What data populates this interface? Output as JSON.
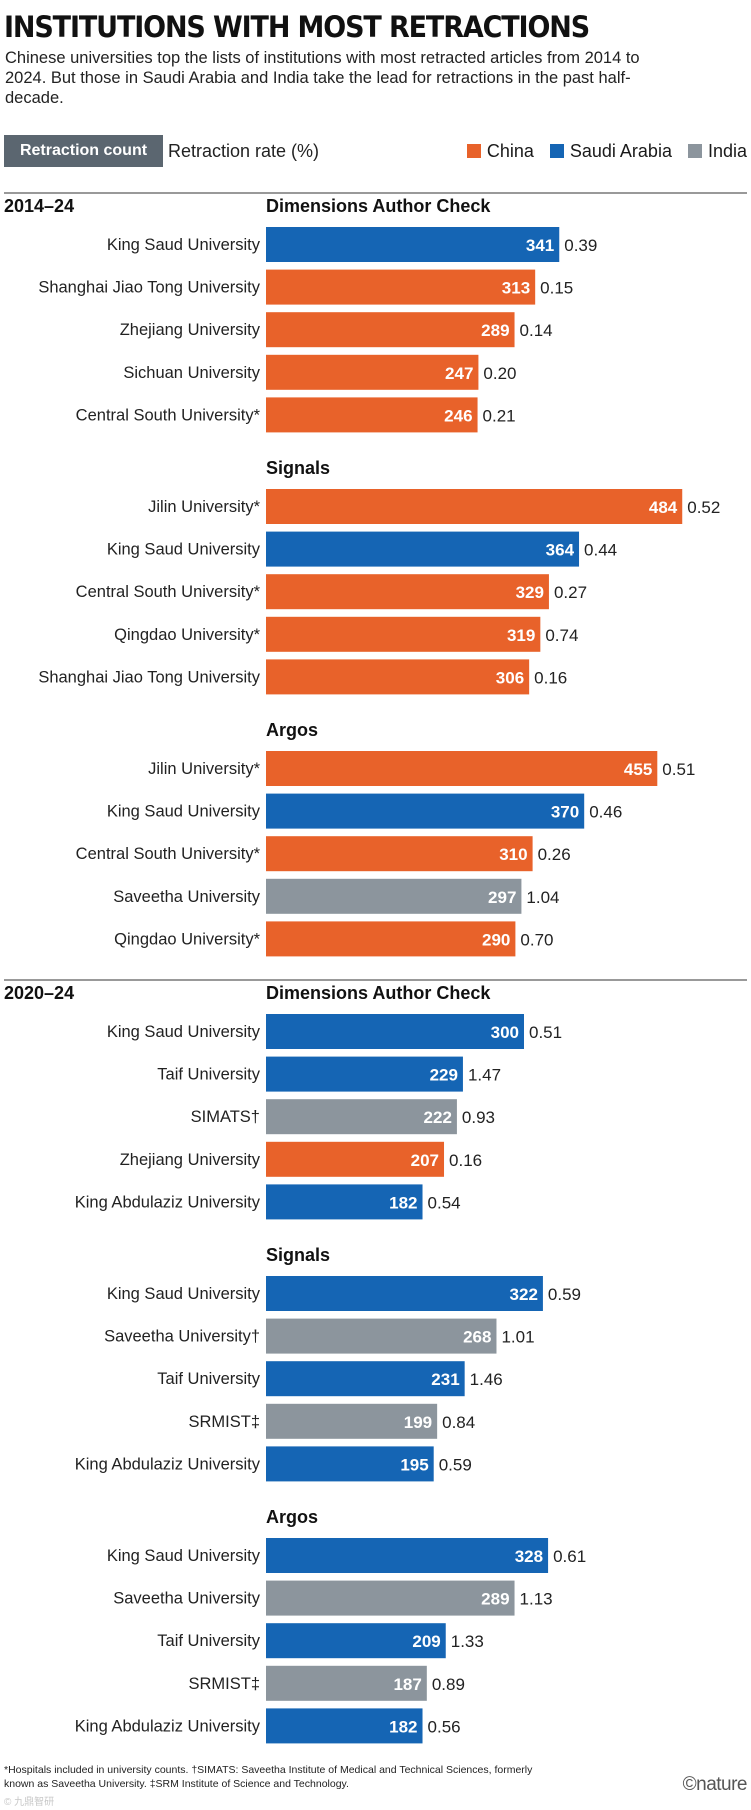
{
  "header": {
    "title": "INSTITUTIONS WITH MOST RETRACTIONS",
    "subtitle": "Chinese universities top the lists of institutions with most retracted articles from 2014 to 2024. But those in Saudi Arabia and India take the lead for retractions in the past half-decade."
  },
  "controls": {
    "count_label": "Retraction count",
    "rate_label": "Retraction rate (%)"
  },
  "legend": [
    {
      "label": "China",
      "color": "#e8622a"
    },
    {
      "label": "Saudi Arabia",
      "color": "#1565b4"
    },
    {
      "label": "India",
      "color": "#8c959d"
    }
  ],
  "chart_data": {
    "type": "bar",
    "orientation": "horizontal",
    "title": "INSTITUTIONS WITH MOST RETRACTIONS",
    "xlim": [
      0,
      500
    ],
    "periods": [
      {
        "label": "2014–24",
        "groups": [
          {
            "source": "Dimensions Author Check",
            "bars": [
              {
                "institution": "King Saud University",
                "country": "Saudi Arabia",
                "count": 341,
                "rate": "0.39"
              },
              {
                "institution": "Shanghai Jiao Tong University",
                "country": "China",
                "count": 313,
                "rate": "0.15"
              },
              {
                "institution": "Zhejiang University",
                "country": "China",
                "count": 289,
                "rate": "0.14"
              },
              {
                "institution": "Sichuan University",
                "country": "China",
                "count": 247,
                "rate": "0.20"
              },
              {
                "institution": "Central South University*",
                "country": "China",
                "count": 246,
                "rate": "0.21"
              }
            ]
          },
          {
            "source": "Signals",
            "bars": [
              {
                "institution": "Jilin University*",
                "country": "China",
                "count": 484,
                "rate": "0.52"
              },
              {
                "institution": "King Saud University",
                "country": "Saudi Arabia",
                "count": 364,
                "rate": "0.44"
              },
              {
                "institution": "Central South University*",
                "country": "China",
                "count": 329,
                "rate": "0.27"
              },
              {
                "institution": "Qingdao University*",
                "country": "China",
                "count": 319,
                "rate": "0.74"
              },
              {
                "institution": "Shanghai Jiao Tong University",
                "country": "China",
                "count": 306,
                "rate": "0.16"
              }
            ]
          },
          {
            "source": "Argos",
            "bars": [
              {
                "institution": "Jilin University*",
                "country": "China",
                "count": 455,
                "rate": "0.51"
              },
              {
                "institution": "King Saud University",
                "country": "Saudi Arabia",
                "count": 370,
                "rate": "0.46"
              },
              {
                "institution": "Central South University*",
                "country": "China",
                "count": 310,
                "rate": "0.26"
              },
              {
                "institution": "Saveetha University",
                "country": "India",
                "count": 297,
                "rate": "1.04"
              },
              {
                "institution": "Qingdao University*",
                "country": "China",
                "count": 290,
                "rate": "0.70"
              }
            ]
          }
        ]
      },
      {
        "label": "2020–24",
        "groups": [
          {
            "source": "Dimensions Author Check",
            "bars": [
              {
                "institution": "King Saud University",
                "country": "Saudi Arabia",
                "count": 300,
                "rate": "0.51"
              },
              {
                "institution": "Taif University",
                "country": "Saudi Arabia",
                "count": 229,
                "rate": "1.47"
              },
              {
                "institution": "SIMATS†",
                "country": "India",
                "count": 222,
                "rate": "0.93"
              },
              {
                "institution": "Zhejiang University",
                "country": "China",
                "count": 207,
                "rate": "0.16"
              },
              {
                "institution": "King Abdulaziz University",
                "country": "Saudi Arabia",
                "count": 182,
                "rate": "0.54"
              }
            ]
          },
          {
            "source": "Signals",
            "bars": [
              {
                "institution": "King Saud University",
                "country": "Saudi Arabia",
                "count": 322,
                "rate": "0.59"
              },
              {
                "institution": "Saveetha University†",
                "country": "India",
                "count": 268,
                "rate": "1.01"
              },
              {
                "institution": "Taif University",
                "country": "Saudi Arabia",
                "count": 231,
                "rate": "1.46"
              },
              {
                "institution": "SRMIST‡",
                "country": "India",
                "count": 199,
                "rate": "0.84"
              },
              {
                "institution": "King Abdulaziz University",
                "country": "Saudi Arabia",
                "count": 195,
                "rate": "0.59"
              }
            ]
          },
          {
            "source": "Argos",
            "bars": [
              {
                "institution": "King Saud University",
                "country": "Saudi Arabia",
                "count": 328,
                "rate": "0.61"
              },
              {
                "institution": "Saveetha University",
                "country": "India",
                "count": 289,
                "rate": "1.13"
              },
              {
                "institution": "Taif University",
                "country": "Saudi Arabia",
                "count": 209,
                "rate": "1.33"
              },
              {
                "institution": "SRMIST‡",
                "country": "India",
                "count": 187,
                "rate": "0.89"
              },
              {
                "institution": "King Abdulaziz University",
                "country": "Saudi Arabia",
                "count": 182,
                "rate": "0.56"
              }
            ]
          }
        ]
      }
    ]
  },
  "footer": {
    "footnote": "*Hospitals included in university counts. †SIMATS: Saveetha Institute of Medical and Technical Sciences, formerly known as Saveetha University. ‡SRM Institute of Science and Technology.",
    "credit": "©nature",
    "watermark": "© 九鼎智研"
  }
}
